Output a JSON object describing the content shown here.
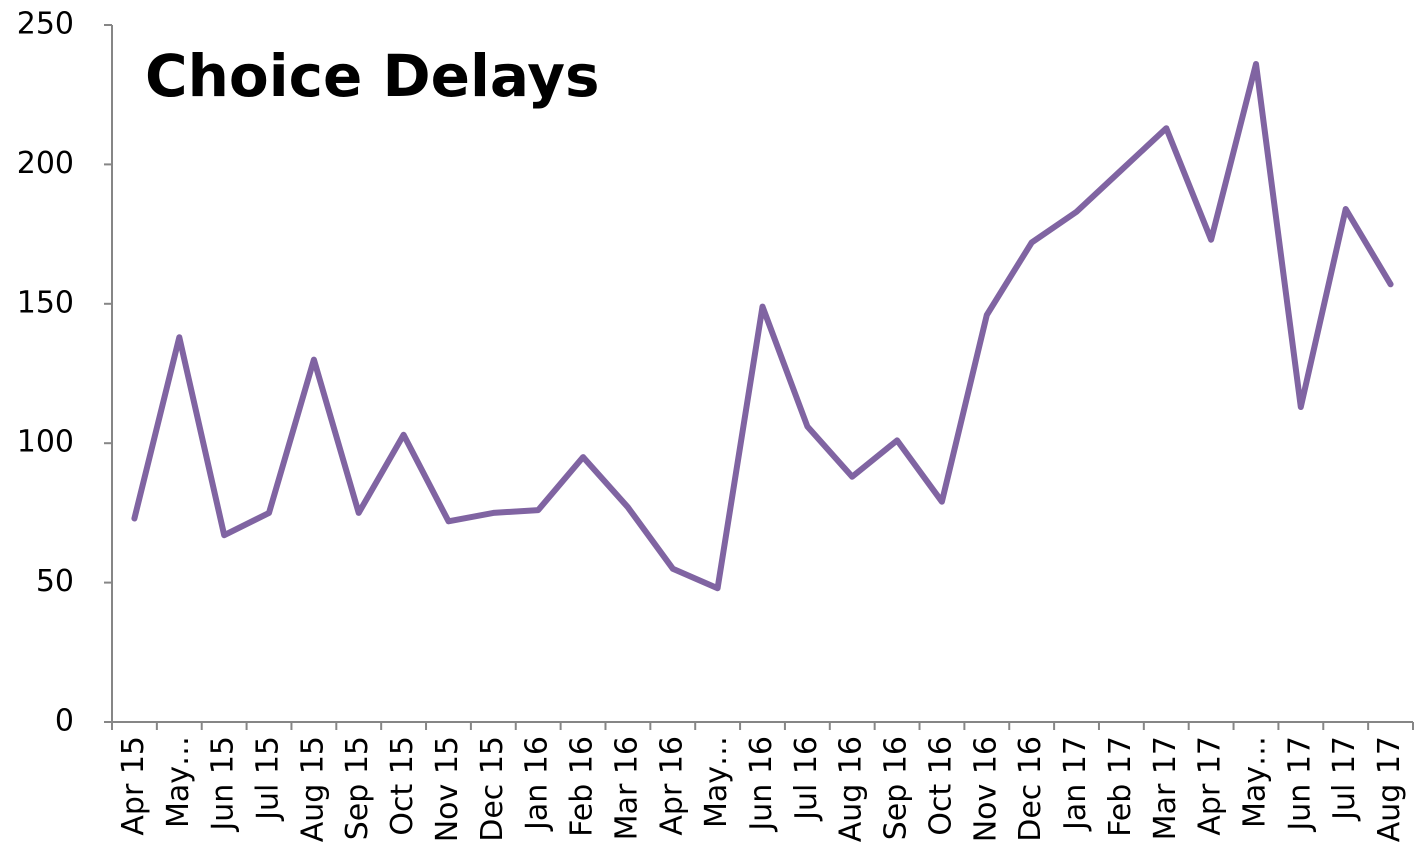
{
  "chart_data": {
    "type": "line",
    "title": "Choice Delays",
    "categories": [
      "Apr 15",
      "May…",
      "Jun 15",
      "Jul 15",
      "Aug 15",
      "Sep 15",
      "Oct 15",
      "Nov 15",
      "Dec 15",
      "Jan 16",
      "Feb 16",
      "Mar 16",
      "Apr 16",
      "May…",
      "Jun 16",
      "Jul 16",
      "Aug 16",
      "Sep 16",
      "Oct 16",
      "Nov 16",
      "Dec 16",
      "Jan 17",
      "Feb 17",
      "Mar 17",
      "Apr 17",
      "May…",
      "Jun 17",
      "Jul 17",
      "Aug 17"
    ],
    "values": [
      73,
      138,
      67,
      75,
      130,
      75,
      103,
      72,
      75,
      76,
      95,
      77,
      55,
      48,
      149,
      106,
      88,
      101,
      79,
      146,
      172,
      183,
      198,
      213,
      173,
      236,
      113,
      184,
      157
    ],
    "color": "#8064a2",
    "ylim": [
      0,
      250
    ],
    "yticks": [
      0,
      50,
      100,
      150,
      200,
      250
    ],
    "grid": false
  }
}
